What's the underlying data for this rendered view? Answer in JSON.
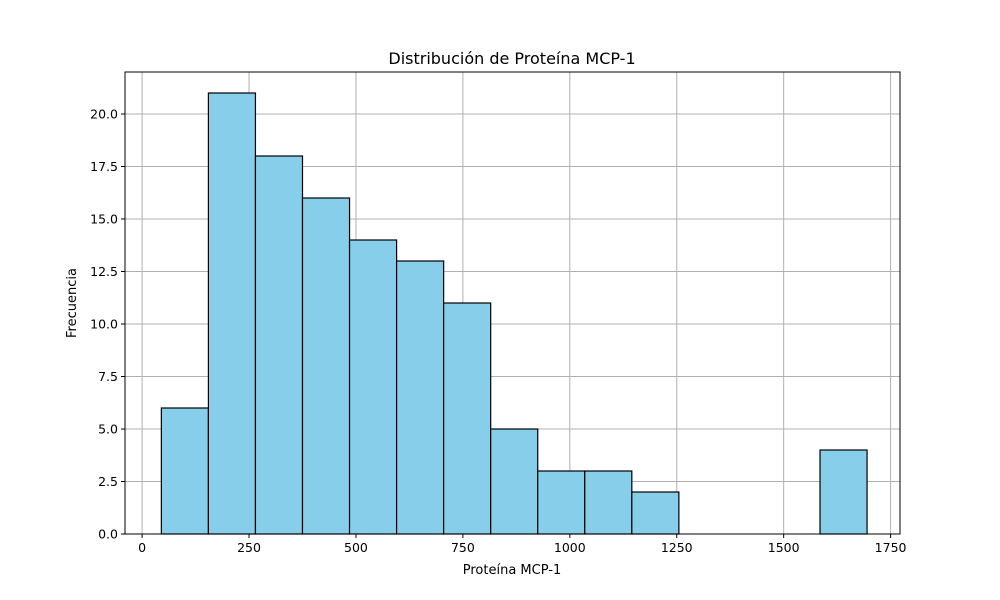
{
  "chart_data": {
    "type": "bar",
    "subtype": "histogram",
    "title": "Distribución de Proteína MCP-1",
    "xlabel": "Proteína MCP-1",
    "ylabel": "Frecuencia",
    "xlim": [
      -40,
      1772
    ],
    "ylim": [
      0,
      22
    ],
    "xticks": [
      0,
      250,
      500,
      750,
      1000,
      1250,
      1500,
      1750
    ],
    "xtick_labels": [
      "0",
      "250",
      "500",
      "750",
      "1000",
      "1250",
      "1500",
      "1750"
    ],
    "yticks": [
      0,
      2.5,
      5,
      7.5,
      10,
      12.5,
      15,
      17.5,
      20
    ],
    "ytick_labels": [
      "0.0",
      "2.5",
      "5.0",
      "7.5",
      "10.0",
      "12.5",
      "15.0",
      "17.5",
      "20.0"
    ],
    "grid": true,
    "bin_edges": [
      45,
      155,
      265,
      375,
      485,
      595,
      705,
      815,
      925,
      1035,
      1145,
      1255,
      1365,
      1475,
      1585,
      1695
    ],
    "values": [
      6,
      21,
      18,
      16,
      14,
      13,
      11,
      5,
      3,
      3,
      2,
      0,
      0,
      0,
      4
    ],
    "colors": {
      "bar_fill": "#87ceeb",
      "bar_edge": "#000000",
      "grid": "#b0b0b0"
    }
  }
}
